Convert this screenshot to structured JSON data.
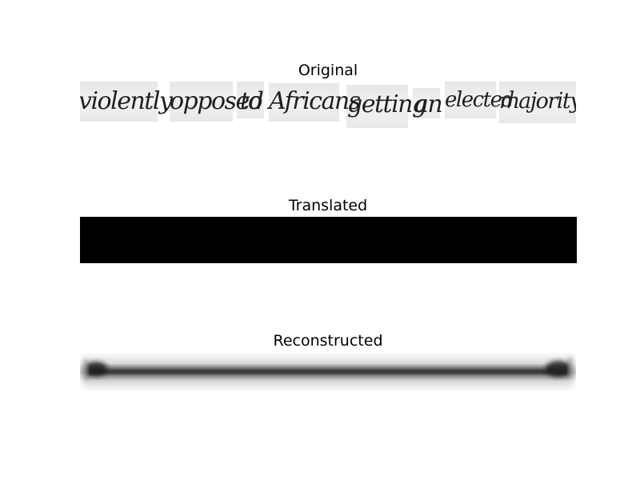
{
  "panels": {
    "original": {
      "title": "Original"
    },
    "translated": {
      "title": "Translated"
    },
    "reconstructed": {
      "title": "Reconstructed"
    }
  },
  "original_words": [
    "violently",
    "opposed",
    "to",
    "Africans",
    "getting",
    "an",
    "elected",
    "majority"
  ],
  "colors": {
    "background": "#ffffff",
    "ink": "#1f1f1f",
    "translated_fill": "#000000"
  }
}
